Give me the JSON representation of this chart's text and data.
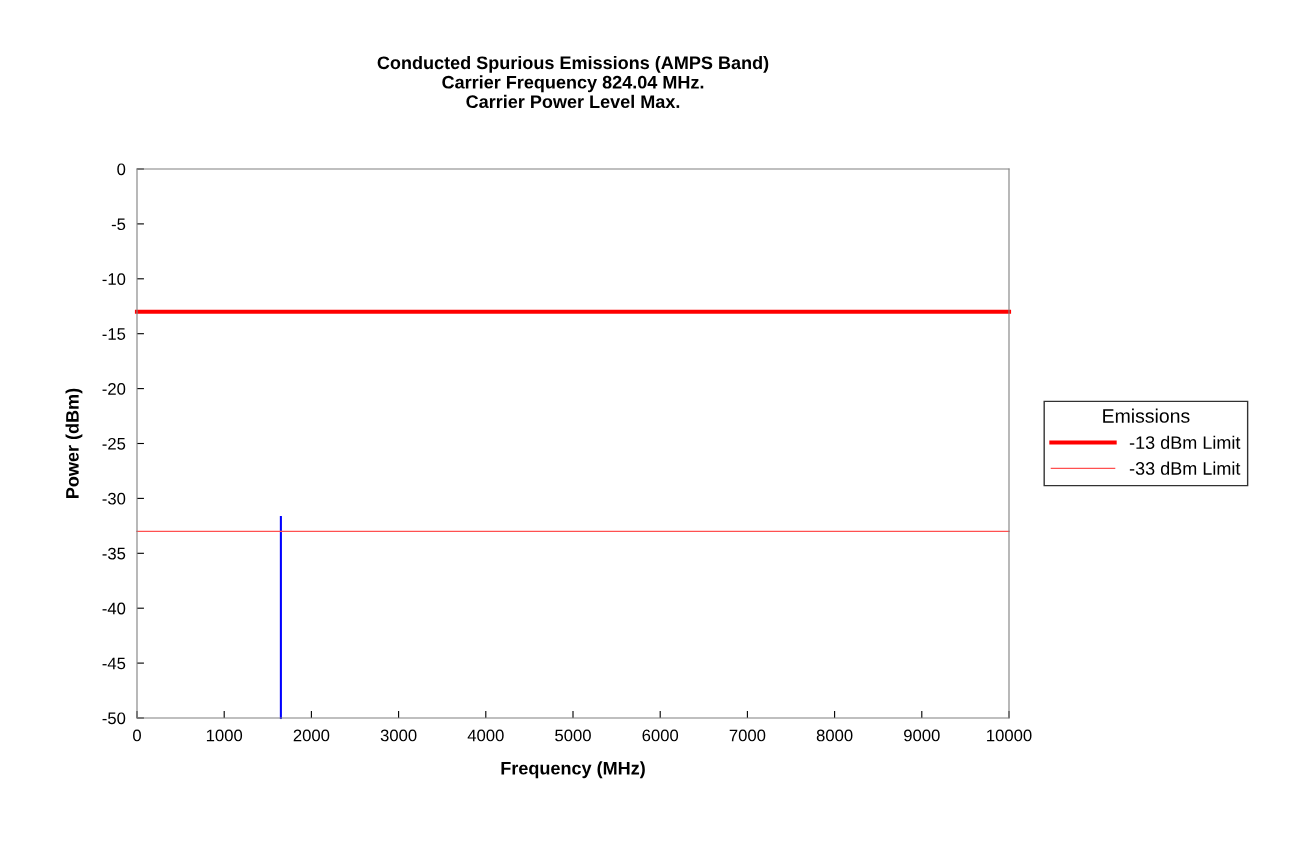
{
  "chart_data": {
    "type": "line",
    "title": "Conducted Spurious Emissions (AMPS Band)\nCarrier Frequency 824.04 MHz.\nCarrier Power Level Max.",
    "xlabel": "Frequency (MHz)",
    "ylabel": "Power (dBm)",
    "legend_title": "Emissions",
    "series": [
      {
        "x": [
          1650,
          1650
        ],
        "values": [
          -50,
          -31.7
        ],
        "color": "#0000ff"
      },
      {
        "name": "-13 dBm Limit",
        "x": [
          0,
          10000
        ],
        "values": [
          -13,
          -13
        ],
        "color": "#ff0000"
      },
      {
        "name": "-33 dBm Limit",
        "x": [
          0,
          10000
        ],
        "values": [
          -33,
          -33
        ],
        "color": "#ff5050"
      }
    ],
    "xlim": [
      0,
      10000
    ],
    "xticks": [
      0,
      1000,
      2000,
      3000,
      4000,
      5000,
      6000,
      7000,
      8000,
      9000,
      10000
    ],
    "ylim": [
      -50,
      0
    ],
    "yticks": [
      -50,
      -45,
      -40,
      -35,
      -30,
      -25,
      -20,
      -15,
      -10,
      -5,
      0
    ],
    "grid": false,
    "legend": "right",
    "marker": "none",
    "line_style": "solid"
  }
}
